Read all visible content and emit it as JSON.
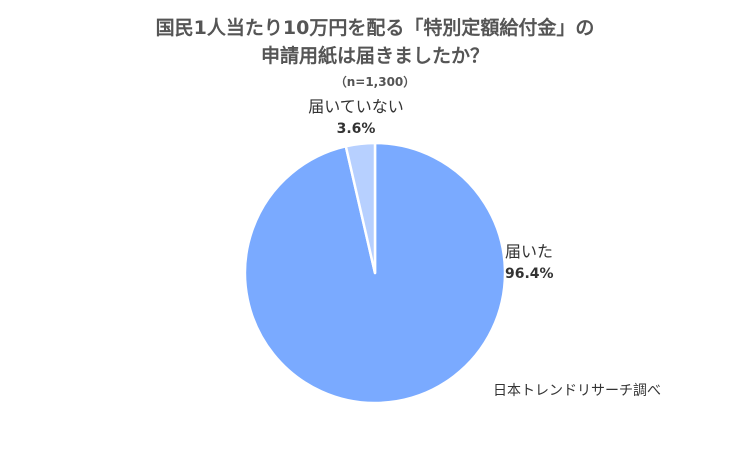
{
  "chart_data": {
    "type": "pie",
    "title_line1": "国民1人当たり10万円を配る「特別定額給付金」の",
    "title_line2": "申請用紙は届きましたか？",
    "subtitle": "（n=1,300）",
    "slices": [
      {
        "label": "届いた",
        "value": 96.4,
        "value_text": "96.4%",
        "color": "#7aaaff"
      },
      {
        "label": "届いていない",
        "value": 3.6,
        "value_text": "3.6%",
        "color": "#b7d0ff"
      }
    ]
  },
  "source": "日本トレンドリサーチ調べ"
}
